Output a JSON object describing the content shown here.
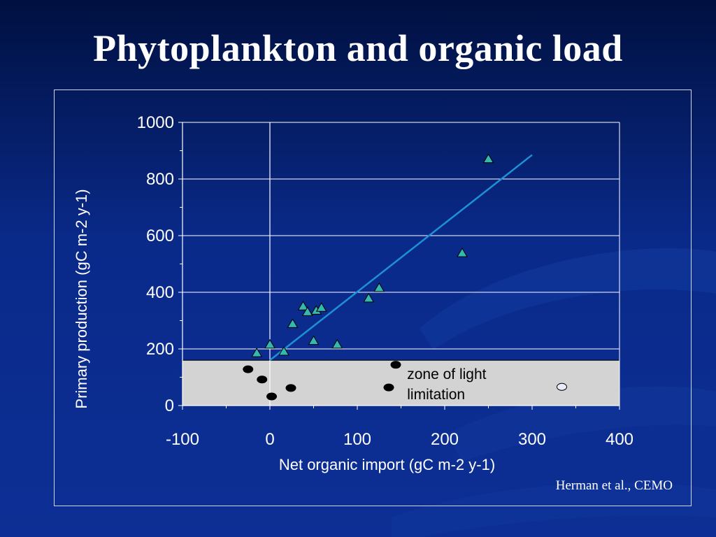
{
  "slide": {
    "title": "Phytoplankton and organic load",
    "citation": "Herman et al., CEMO"
  },
  "colors": {
    "background": "#0b2a8a",
    "axis_text": "#ffffff",
    "zone_fill": "#d3d3d3",
    "line": "#1e90d6",
    "triangle_fill": "#35b8b0",
    "dot_fill": "#000000",
    "open_dot_fill": "#e8ecf8"
  },
  "chart_data": {
    "type": "scatter",
    "xlabel": "Net organic import (gC m-2 y-1)",
    "ylabel": "Primary production (gC m-2 y-1)",
    "xlim": [
      -100,
      400
    ],
    "ylim": [
      0,
      1000
    ],
    "x_ticks": [
      -100,
      0,
      100,
      200,
      300,
      400
    ],
    "y_ticks": [
      0,
      200,
      400,
      600,
      800,
      1000
    ],
    "grid": "horizontal",
    "annotation": {
      "lines": [
        "zone of light",
        "limitation"
      ],
      "zone_y_range": [
        0,
        160
      ]
    },
    "regression_line": {
      "x": [
        0,
        300
      ],
      "y": [
        160,
        885
      ]
    },
    "series": [
      {
        "marker": "triangle",
        "points": [
          {
            "x": -15,
            "y": 185
          },
          {
            "x": 0,
            "y": 215
          },
          {
            "x": 16,
            "y": 190
          },
          {
            "x": 26,
            "y": 288
          },
          {
            "x": 38,
            "y": 350
          },
          {
            "x": 43,
            "y": 330
          },
          {
            "x": 53,
            "y": 335
          },
          {
            "x": 59,
            "y": 345
          },
          {
            "x": 50,
            "y": 228
          },
          {
            "x": 77,
            "y": 215
          },
          {
            "x": 113,
            "y": 378
          },
          {
            "x": 125,
            "y": 415
          },
          {
            "x": 220,
            "y": 538
          },
          {
            "x": 250,
            "y": 870
          }
        ]
      },
      {
        "marker": "dot",
        "points": [
          {
            "x": -25,
            "y": 128
          },
          {
            "x": -9,
            "y": 92
          },
          {
            "x": 2,
            "y": 32
          },
          {
            "x": 24,
            "y": 62
          },
          {
            "x": 136,
            "y": 64
          },
          {
            "x": 144,
            "y": 144
          }
        ]
      },
      {
        "marker": "open-dot",
        "points": [
          {
            "x": 334,
            "y": 66
          }
        ]
      }
    ]
  }
}
